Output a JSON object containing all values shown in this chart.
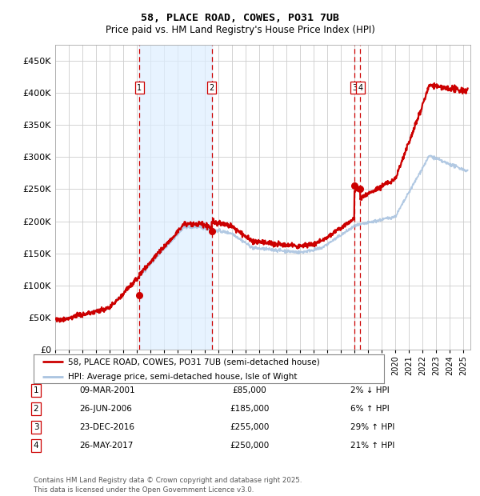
{
  "title": "58, PLACE ROAD, COWES, PO31 7UB",
  "subtitle": "Price paid vs. HM Land Registry's House Price Index (HPI)",
  "background_color": "#ffffff",
  "chart_bg": "#ffffff",
  "grid_color": "#cccccc",
  "hpi_line_color": "#aac4e0",
  "price_line_color": "#cc0000",
  "ylim": [
    0,
    475000
  ],
  "yticks": [
    0,
    50000,
    100000,
    150000,
    200000,
    250000,
    300000,
    350000,
    400000,
    450000
  ],
  "xlim_start": 1995.0,
  "xlim_end": 2025.5,
  "transactions": [
    {
      "num": 1,
      "date": "09-MAR-2001",
      "year": 2001.19,
      "price": 85000,
      "label": "1"
    },
    {
      "num": 2,
      "date": "26-JUN-2006",
      "year": 2006.49,
      "price": 185000,
      "label": "2"
    },
    {
      "num": 3,
      "date": "23-DEC-2016",
      "year": 2016.98,
      "price": 255000,
      "label": "3"
    },
    {
      "num": 4,
      "date": "26-MAY-2017",
      "year": 2017.4,
      "price": 250000,
      "label": "4"
    }
  ],
  "transaction_info": [
    {
      "num": "1",
      "date": "09-MAR-2001",
      "price": "£85,000",
      "change": "2% ↓ HPI"
    },
    {
      "num": "2",
      "date": "26-JUN-2006",
      "price": "£185,000",
      "change": "6% ↑ HPI"
    },
    {
      "num": "3",
      "date": "23-DEC-2016",
      "price": "£255,000",
      "change": "29% ↑ HPI"
    },
    {
      "num": "4",
      "date": "26-MAY-2017",
      "price": "£250,000",
      "change": "21% ↑ HPI"
    }
  ],
  "legend_entries": [
    "58, PLACE ROAD, COWES, PO31 7UB (semi-detached house)",
    "HPI: Average price, semi-detached house, Isle of Wight"
  ],
  "footnote": "Contains HM Land Registry data © Crown copyright and database right 2025.\nThis data is licensed under the Open Government Licence v3.0.",
  "shaded_region": [
    2001.19,
    2006.49
  ]
}
